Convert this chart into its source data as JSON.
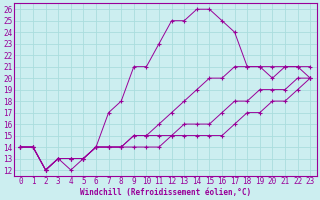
{
  "xlabel": "Windchill (Refroidissement éolien,°C)",
  "xlim": [
    -0.5,
    23.5
  ],
  "ylim": [
    11.5,
    26.5
  ],
  "xticks": [
    0,
    1,
    2,
    3,
    4,
    5,
    6,
    7,
    8,
    9,
    10,
    11,
    12,
    13,
    14,
    15,
    16,
    17,
    18,
    19,
    20,
    21,
    22,
    23
  ],
  "yticks": [
    12,
    13,
    14,
    15,
    16,
    17,
    18,
    19,
    20,
    21,
    22,
    23,
    24,
    25,
    26
  ],
  "bg_color": "#cceef0",
  "line_color": "#990099",
  "grid_color": "#aadddd",
  "lines": [
    [
      0,
      14,
      1,
      14,
      2,
      12,
      3,
      13,
      4,
      12,
      5,
      13,
      6,
      14,
      7,
      17,
      8,
      18,
      9,
      21,
      10,
      21,
      11,
      23,
      12,
      25,
      13,
      25,
      14,
      26,
      15,
      26,
      16,
      25,
      17,
      24,
      18,
      21,
      19,
      21,
      20,
      20,
      21,
      21,
      22,
      21,
      23,
      20
    ],
    [
      0,
      14,
      1,
      14,
      2,
      12,
      3,
      13,
      4,
      13,
      5,
      13,
      6,
      14,
      7,
      14,
      8,
      14,
      9,
      15,
      10,
      15,
      11,
      16,
      12,
      17,
      13,
      18,
      14,
      19,
      15,
      20,
      16,
      20,
      17,
      21,
      18,
      21,
      19,
      21,
      20,
      21,
      21,
      21,
      22,
      21,
      23,
      21
    ],
    [
      0,
      14,
      1,
      14,
      2,
      12,
      3,
      13,
      4,
      13,
      5,
      13,
      6,
      14,
      7,
      14,
      8,
      14,
      9,
      15,
      10,
      15,
      11,
      15,
      12,
      15,
      13,
      16,
      14,
      16,
      15,
      16,
      16,
      17,
      17,
      18,
      18,
      18,
      19,
      19,
      20,
      19,
      21,
      19,
      22,
      20,
      23,
      20
    ],
    [
      0,
      14,
      1,
      14,
      2,
      12,
      3,
      13,
      4,
      13,
      5,
      13,
      6,
      14,
      7,
      14,
      8,
      14,
      9,
      14,
      10,
      14,
      11,
      14,
      12,
      15,
      13,
      15,
      14,
      15,
      15,
      15,
      16,
      15,
      17,
      16,
      18,
      17,
      19,
      17,
      20,
      18,
      21,
      18,
      22,
      19,
      23,
      20
    ]
  ],
  "tick_fontsize": 5.5,
  "xlabel_fontsize": 5.5
}
